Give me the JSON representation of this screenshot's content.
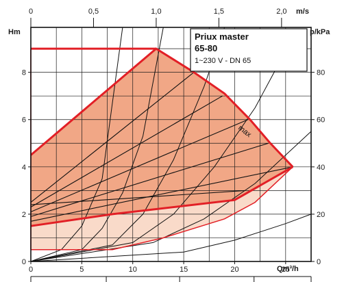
{
  "chart_data": {
    "type": "line",
    "title": "Priux master",
    "model": "65-80",
    "subtitle": "1~230 V - DN 65",
    "curve_label": "max",
    "xlabel": "Qm³/h",
    "ylabel": "Hm",
    "x_top_label": "m/s",
    "y_right_label": "p/kPa",
    "xlim": [
      0,
      27.5
    ],
    "ylim": [
      0,
      9.9
    ],
    "x_ticks": [
      0,
      5,
      10,
      15,
      20,
      25
    ],
    "x_tick_labels": [
      "0",
      "5",
      "10",
      "15",
      "20",
      "25"
    ],
    "y_ticks": [
      0,
      2,
      4,
      6,
      8
    ],
    "y_tick_labels": [
      "0",
      "2",
      "4",
      "6",
      "8"
    ],
    "top_ticks": [
      0,
      0.5,
      1.0,
      1.5,
      2.0
    ],
    "top_tick_labels": [
      "0",
      "0,5",
      "1,0",
      "1,5",
      "2,0"
    ],
    "right_ticks": [
      0,
      20,
      40,
      60,
      80
    ],
    "right_tick_labels": [
      "0",
      "20",
      "40",
      "60",
      "80"
    ],
    "grid": true,
    "colors": {
      "envelope_fill": "#f9dac9",
      "max_fill": "#f1a786",
      "envelope_line": "#e21f26",
      "curves": "#111111",
      "grid": "#1a1a1a"
    },
    "max_curve": [
      [
        0,
        4.5
      ],
      [
        12.3,
        9
      ],
      [
        16,
        8
      ],
      [
        19,
        7.1
      ],
      [
        21.5,
        6
      ],
      [
        23.5,
        5
      ],
      [
        25.7,
        4
      ]
    ],
    "min_curve": [
      [
        0,
        1.5
      ],
      [
        8,
        2
      ],
      [
        20,
        2.6
      ],
      [
        25.7,
        4
      ]
    ],
    "constant_pressure": [
      [
        0,
        9
      ],
      [
        12.3,
        9
      ]
    ],
    "low_envelope": [
      [
        0,
        0.5
      ],
      [
        8,
        0.5
      ],
      [
        13,
        1
      ],
      [
        19,
        1.8
      ],
      [
        22,
        2.5
      ],
      [
        25.7,
        4
      ]
    ],
    "speed_curves": [
      {
        "x": [
          0,
          16
        ],
        "y": [
          2.5,
          8.0
        ]
      },
      {
        "x": [
          0,
          18.8
        ],
        "y": [
          2.3,
          7.0
        ]
      },
      {
        "x": [
          0,
          21.3
        ],
        "y": [
          2.1,
          6.0
        ]
      },
      {
        "x": [
          0,
          23.3
        ],
        "y": [
          1.9,
          5.0
        ]
      },
      {
        "x": [
          0,
          25.7
        ],
        "y": [
          1.7,
          4.0
        ]
      },
      {
        "x": [
          0,
          21
        ],
        "y": [
          2.4,
          3.0
        ]
      }
    ],
    "system_curves": [
      {
        "x": [
          0,
          3,
          5,
          7,
          9
        ],
        "y": [
          0,
          0.5,
          1.5,
          3.5,
          9.9
        ]
      },
      {
        "x": [
          0,
          5,
          7,
          9,
          11,
          13
        ],
        "y": [
          0,
          0.5,
          1.4,
          2.9,
          5.3,
          9.9
        ]
      },
      {
        "x": [
          0,
          8,
          11,
          14,
          17,
          19
        ],
        "y": [
          0,
          0.7,
          2.0,
          4.3,
          7.4,
          9.9
        ]
      },
      {
        "x": [
          0,
          10,
          14,
          18,
          22,
          25
        ],
        "y": [
          0,
          0.8,
          2.0,
          4.0,
          6.5,
          8.9
        ]
      },
      {
        "x": [
          0,
          12,
          17,
          22,
          27.5
        ],
        "y": [
          0,
          0.8,
          1.8,
          3.3,
          5.5
        ]
      },
      {
        "x": [
          0,
          15,
          20,
          25,
          27.5
        ],
        "y": [
          0,
          0.4,
          0.9,
          1.6,
          2.0
        ]
      }
    ]
  }
}
